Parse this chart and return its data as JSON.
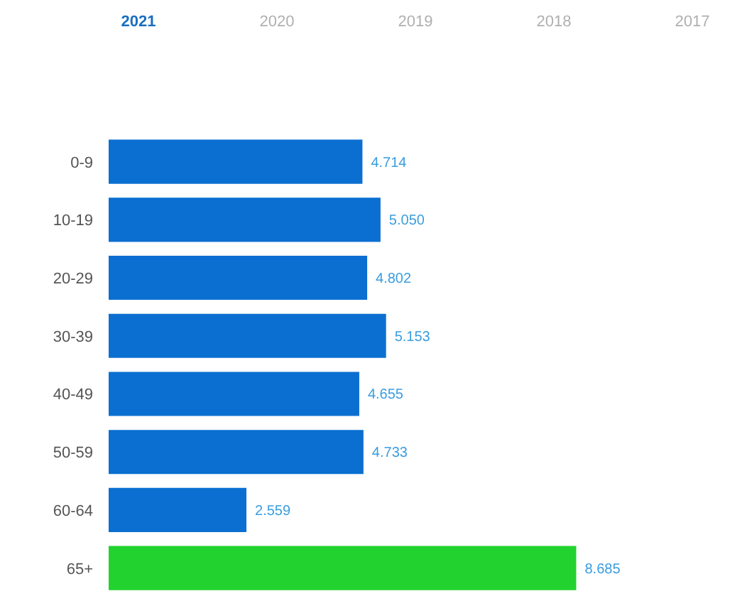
{
  "chart_data": {
    "type": "bar",
    "orientation": "horizontal",
    "categories": [
      "0-9",
      "10-19",
      "20-29",
      "30-39",
      "40-49",
      "50-59",
      "60-64",
      "65+"
    ],
    "values": [
      4714,
      5050,
      4802,
      5153,
      4655,
      4733,
      2559,
      8685
    ],
    "value_labels": [
      "4.714",
      "5.050",
      "4.802",
      "5.153",
      "4.655",
      "4.733",
      "2.559",
      "8.685"
    ],
    "colors": [
      "#0b6fd1",
      "#0b6fd1",
      "#0b6fd1",
      "#0b6fd1",
      "#0b6fd1",
      "#0b6fd1",
      "#0b6fd1",
      "#22d22f"
    ],
    "annotations": [
      "2021",
      "2020",
      "2019",
      "2018",
      "2017"
    ],
    "grid": false
  }
}
